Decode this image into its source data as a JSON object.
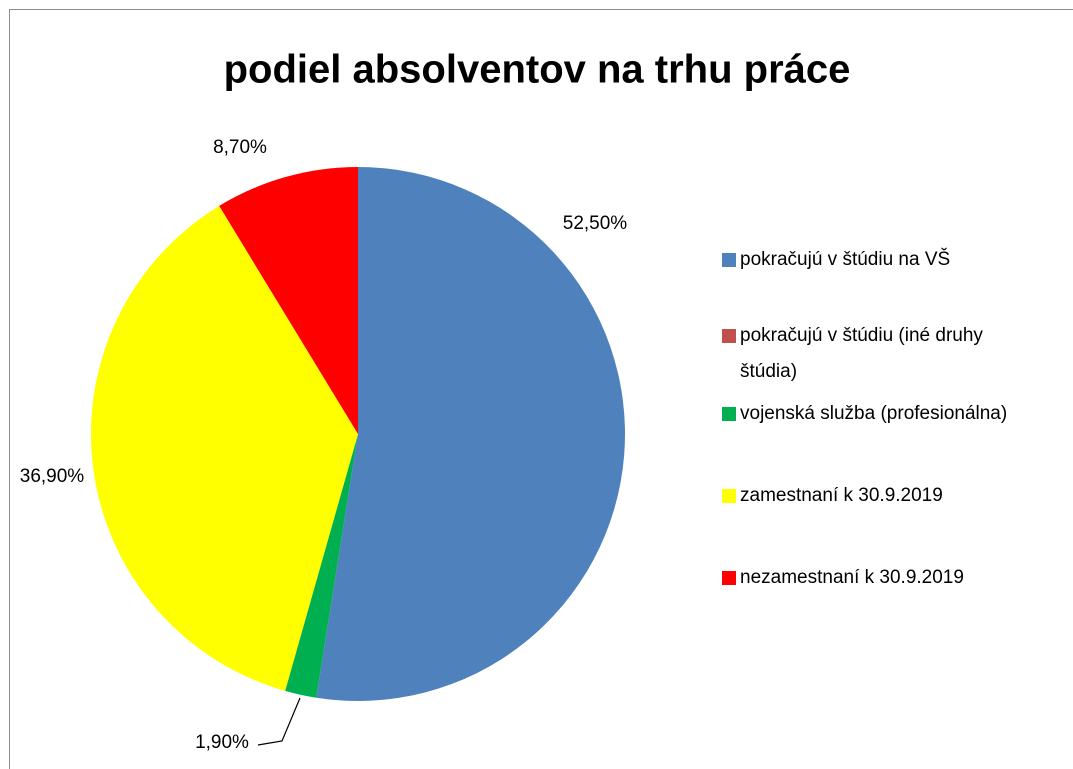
{
  "chart_data": {
    "type": "pie",
    "title": "podiel absolventov na trhu práce",
    "categories": [
      "pokračujú v štúdiu na VŠ",
      "pokračujú v štúdiu (iné druhy štúdia)",
      "vojenská služba (profesionálna)",
      "zamestnaní k 30.9.2019",
      "nezamestnaní k 30.9.2019"
    ],
    "values": [
      52.5,
      0,
      1.9,
      36.9,
      8.7
    ],
    "value_labels": [
      "52,50%",
      null,
      "1,90%",
      "36,90%",
      "8,70%"
    ],
    "colors": [
      "#4f81bd",
      "#c0504d",
      "#00b050",
      "#ffff00",
      "#ff0000"
    ],
    "legend": "right"
  }
}
